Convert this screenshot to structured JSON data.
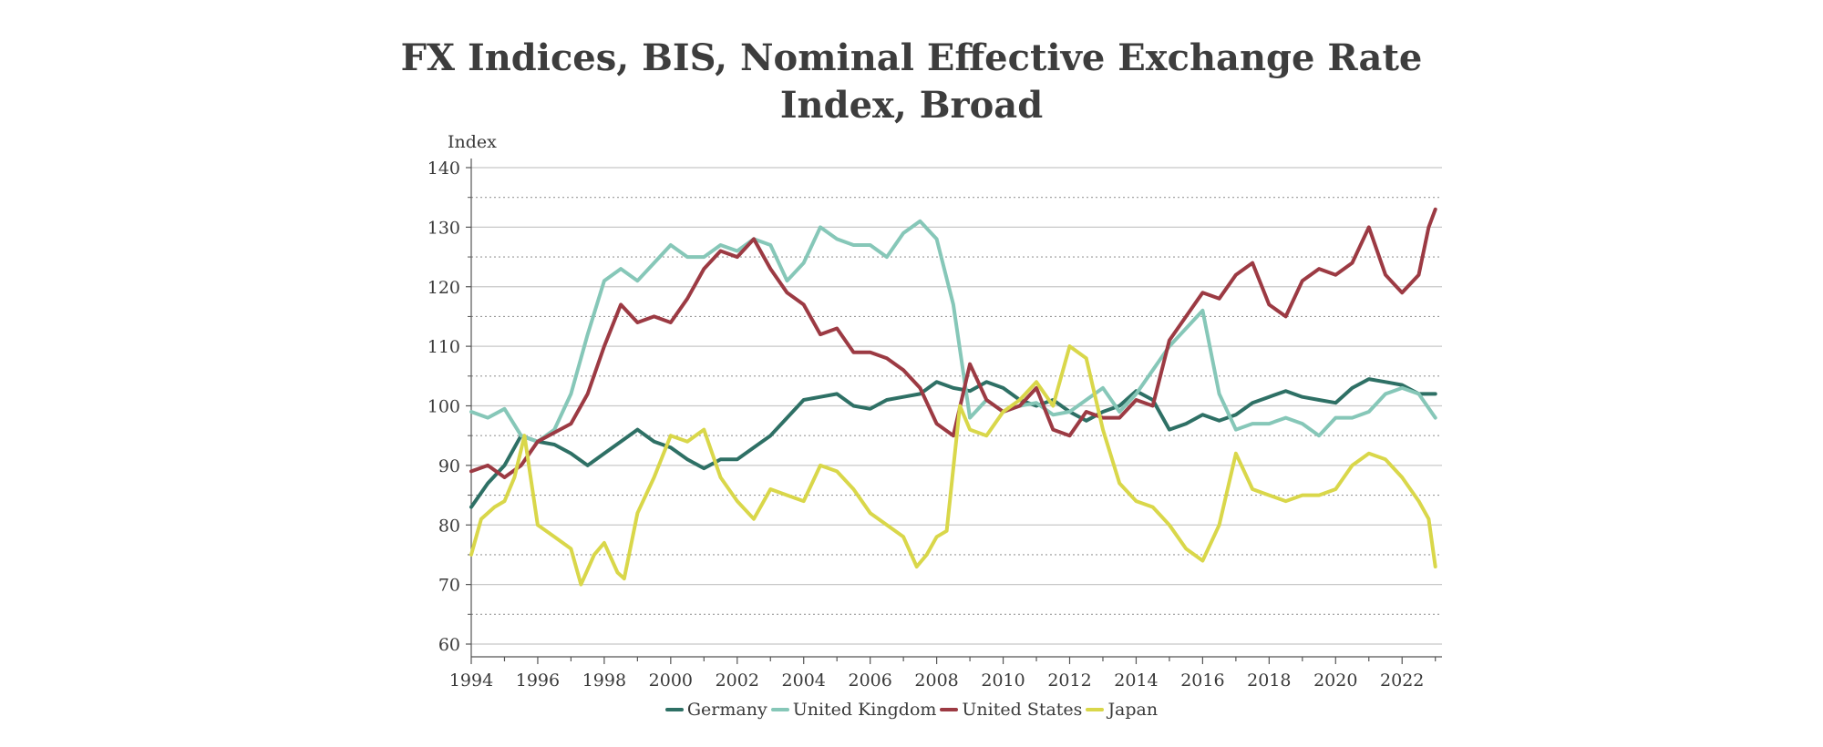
{
  "chart_data": {
    "type": "line",
    "title": "FX Indices, BIS, Nominal Effective Exchange Rate Index, Broad",
    "ylabel": "Index",
    "xlabel": "",
    "ylim": [
      60,
      140
    ],
    "xlim": [
      1994,
      2023.2
    ],
    "yticks": [
      60,
      70,
      80,
      90,
      100,
      110,
      120,
      130,
      140
    ],
    "xticks": [
      1994,
      1996,
      1998,
      2000,
      2002,
      2004,
      2006,
      2008,
      2010,
      2012,
      2014,
      2016,
      2018,
      2020,
      2022
    ],
    "grid": true,
    "legend_position": "bottom",
    "series": [
      {
        "name": "Germany",
        "color": "#2e7065",
        "x": [
          1994.0,
          1994.5,
          1995.0,
          1995.5,
          1996.0,
          1996.5,
          1997.0,
          1997.5,
          1998.0,
          1998.5,
          1999.0,
          1999.5,
          2000.0,
          2000.5,
          2001.0,
          2001.5,
          2002.0,
          2002.5,
          2003.0,
          2003.5,
          2004.0,
          2004.5,
          2005.0,
          2005.5,
          2006.0,
          2006.5,
          2007.0,
          2007.5,
          2008.0,
          2008.5,
          2009.0,
          2009.5,
          2010.0,
          2010.5,
          2011.0,
          2011.5,
          2012.0,
          2012.5,
          2013.0,
          2013.5,
          2014.0,
          2014.5,
          2015.0,
          2015.5,
          2016.0,
          2016.5,
          2017.0,
          2017.5,
          2018.0,
          2018.5,
          2019.0,
          2019.5,
          2020.0,
          2020.5,
          2021.0,
          2021.5,
          2022.0,
          2022.5,
          2023.0
        ],
        "y": [
          83,
          87,
          90,
          95,
          94,
          93.5,
          92,
          90,
          92,
          94,
          96,
          94,
          93,
          91,
          89.5,
          91,
          91,
          93,
          95,
          98,
          101,
          101.5,
          102,
          100,
          99.5,
          101,
          101.5,
          102,
          104,
          103,
          102.5,
          104,
          103,
          101,
          100,
          101,
          99,
          97.5,
          99,
          100,
          102.5,
          101,
          96,
          97,
          98.5,
          97.5,
          98.5,
          100.5,
          101.5,
          102.5,
          101.5,
          101,
          100.5,
          103,
          104.5,
          104,
          103.5,
          102,
          102
        ]
      },
      {
        "name": "United Kingdom",
        "color": "#86c7b8",
        "x": [
          1994.0,
          1994.5,
          1995.0,
          1995.5,
          1996.0,
          1996.5,
          1997.0,
          1997.5,
          1998.0,
          1998.5,
          1999.0,
          1999.5,
          2000.0,
          2000.5,
          2001.0,
          2001.5,
          2002.0,
          2002.5,
          2003.0,
          2003.5,
          2004.0,
          2004.5,
          2005.0,
          2005.5,
          2006.0,
          2006.5,
          2007.0,
          2007.5,
          2008.0,
          2008.5,
          2009.0,
          2009.5,
          2010.0,
          2010.5,
          2011.0,
          2011.5,
          2012.0,
          2012.5,
          2013.0,
          2013.5,
          2014.0,
          2014.5,
          2015.0,
          2015.5,
          2016.0,
          2016.5,
          2017.0,
          2017.5,
          2018.0,
          2018.5,
          2019.0,
          2019.5,
          2020.0,
          2020.5,
          2021.0,
          2021.5,
          2022.0,
          2022.5,
          2023.0
        ],
        "y": [
          99,
          98,
          99.5,
          95,
          94,
          96,
          102,
          112,
          121,
          123,
          121,
          124,
          127,
          125,
          125,
          127,
          126,
          128,
          127,
          121,
          124,
          130,
          128,
          127,
          127,
          125,
          129,
          131,
          128,
          117,
          98,
          101,
          99,
          100,
          100.5,
          98.5,
          99,
          101,
          103,
          99,
          102,
          106,
          110,
          113,
          116,
          102,
          96,
          97,
          97,
          98,
          97,
          95,
          98,
          98,
          99,
          102,
          103,
          102,
          98
        ]
      },
      {
        "name": "United States",
        "color": "#9c3a43",
        "x": [
          1994.0,
          1994.5,
          1995.0,
          1995.5,
          1996.0,
          1996.5,
          1997.0,
          1997.5,
          1998.0,
          1998.5,
          1999.0,
          1999.5,
          2000.0,
          2000.5,
          2001.0,
          2001.5,
          2002.0,
          2002.5,
          2003.0,
          2003.5,
          2004.0,
          2004.5,
          2005.0,
          2005.5,
          2006.0,
          2006.5,
          2007.0,
          2007.5,
          2008.0,
          2008.5,
          2009.0,
          2009.5,
          2010.0,
          2010.5,
          2011.0,
          2011.5,
          2012.0,
          2012.5,
          2013.0,
          2013.5,
          2014.0,
          2014.5,
          2015.0,
          2015.5,
          2016.0,
          2016.5,
          2017.0,
          2017.5,
          2018.0,
          2018.5,
          2019.0,
          2019.5,
          2020.0,
          2020.5,
          2021.0,
          2021.5,
          2022.0,
          2022.5,
          2022.8,
          2023.0
        ],
        "y": [
          89,
          90,
          88,
          90,
          94,
          95.5,
          97,
          102,
          110,
          117,
          114,
          115,
          114,
          118,
          123,
          126,
          125,
          128,
          123,
          119,
          117,
          112,
          113,
          109,
          109,
          108,
          106,
          103,
          97,
          95,
          107,
          101,
          99,
          100,
          103,
          96,
          95,
          99,
          98,
          98,
          101,
          100,
          111,
          115,
          119,
          118,
          122,
          124,
          117,
          115,
          121,
          123,
          122,
          124,
          130,
          122,
          119,
          122,
          130,
          133
        ]
      },
      {
        "name": "Japan",
        "color": "#d9d74a",
        "x": [
          1994.0,
          1994.3,
          1994.7,
          1995.0,
          1995.3,
          1995.6,
          1996.0,
          1996.5,
          1997.0,
          1997.3,
          1997.7,
          1998.0,
          1998.4,
          1998.6,
          1999.0,
          1999.5,
          2000.0,
          2000.5,
          2001.0,
          2001.5,
          2002.0,
          2002.5,
          2003.0,
          2003.5,
          2004.0,
          2004.5,
          2005.0,
          2005.5,
          2006.0,
          2006.5,
          2007.0,
          2007.4,
          2007.7,
          2008.0,
          2008.3,
          2008.7,
          2009.0,
          2009.5,
          2010.0,
          2010.5,
          2011.0,
          2011.5,
          2012.0,
          2012.5,
          2013.0,
          2013.5,
          2014.0,
          2014.5,
          2015.0,
          2015.5,
          2016.0,
          2016.5,
          2017.0,
          2017.5,
          2018.0,
          2018.5,
          2019.0,
          2019.5,
          2020.0,
          2020.5,
          2021.0,
          2021.5,
          2022.0,
          2022.5,
          2022.8,
          2023.0
        ],
        "y": [
          75,
          81,
          83,
          84,
          88,
          95,
          80,
          78,
          76,
          70,
          75,
          77,
          72,
          71,
          82,
          88,
          95,
          94,
          96,
          88,
          84,
          81,
          86,
          85,
          84,
          90,
          89,
          86,
          82,
          80,
          78,
          73,
          75,
          78,
          79,
          100,
          96,
          95,
          99,
          101,
          104,
          100,
          110,
          108,
          96,
          87,
          84,
          83,
          80,
          76,
          74,
          80,
          92,
          86,
          85,
          84,
          85,
          85,
          86,
          90,
          92,
          91,
          88,
          84,
          81,
          73
        ]
      }
    ]
  }
}
